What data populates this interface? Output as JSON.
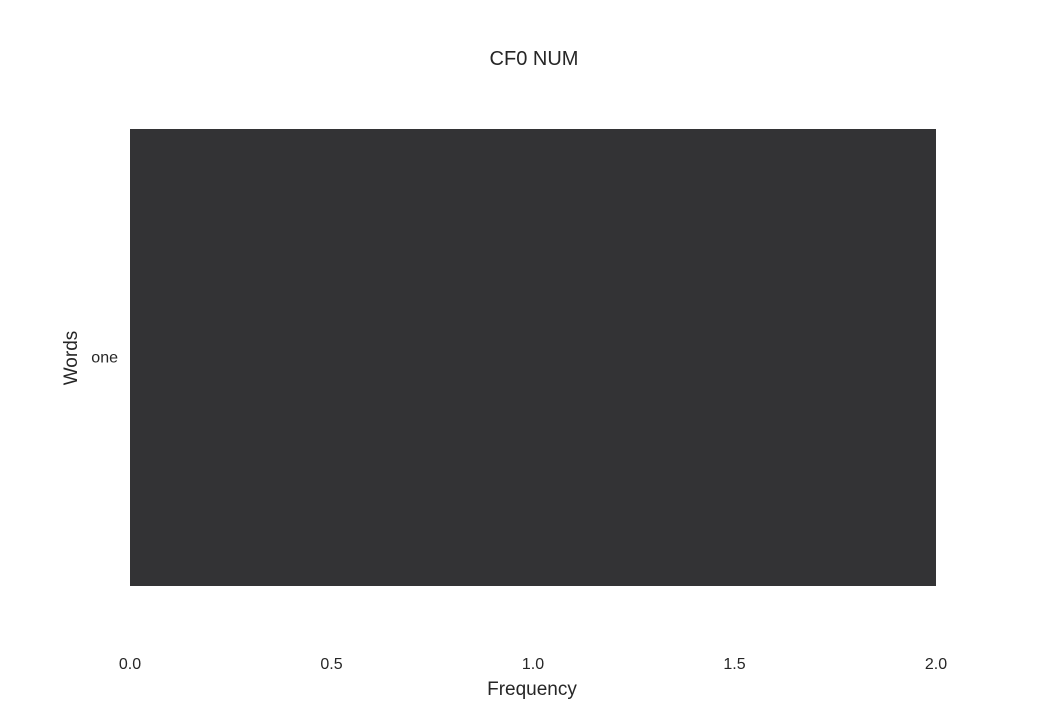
{
  "chart_data": {
    "type": "bar",
    "orientation": "horizontal",
    "title": "CF0 NUM",
    "xlabel": "Frequency",
    "ylabel": "Words",
    "categories": [
      "one"
    ],
    "values": [
      2
    ],
    "xlim": [
      0.0,
      2.0
    ],
    "xticks": [
      "0.0",
      "0.5",
      "1.0",
      "1.5",
      "2.0"
    ],
    "grid": false,
    "legend": "none",
    "bar_color": "#333335"
  }
}
